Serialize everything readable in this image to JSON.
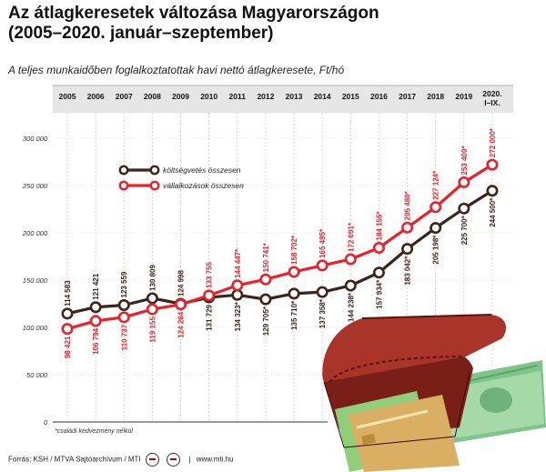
{
  "header": {
    "title_line1": "Az átlagkeresetek változása Magyarországon",
    "title_line2": "(2005–2020. január–szeptember)",
    "subtitle": "A teljes munkaidőben foglalkoztatottak havi nettó átlagkeresete, Ft/hó"
  },
  "footer": {
    "source": "Forrás: KSH / MTVA Sajtóarchívum / MTI",
    "url": "www.mti.hu"
  },
  "colors": {
    "red": "#e8212a",
    "brown": "#3d2418",
    "grid_line": "#cccccc",
    "header_band": "#e6e6e6"
  },
  "chart_data": {
    "type": "line",
    "categories": [
      "2005",
      "2006",
      "2007",
      "2008",
      "2009",
      "2010",
      "2011",
      "2012",
      "2013",
      "2014",
      "2015",
      "2016",
      "2017",
      "2018",
      "2019",
      "2020. I–IX."
    ],
    "ylim": [
      0,
      300000
    ],
    "yticks": [
      "0",
      "50 000",
      "100 000",
      "150 000",
      "200 000",
      "250 000",
      "300 000"
    ],
    "grid": true,
    "legend_position": "upper-left",
    "footnote": "*családi kedvezmény nélkül",
    "series": [
      {
        "name": "költségvetés összesen",
        "color": "#3d2418",
        "values": [
          114583,
          121421,
          123559,
          130809,
          124998,
          131729,
          134323,
          129705,
          135710,
          137358,
          144238,
          157934,
          183042,
          205198,
          225700,
          244500
        ],
        "labels": [
          "114 583",
          "121 421",
          "123 559",
          "130 809",
          "124 998",
          "131 729",
          "134 323*",
          "129 705*",
          "135 710*",
          "137 358*",
          "144 238*",
          "157 934*",
          "183 042*",
          "205 198*",
          "225 700*",
          "244 500*"
        ]
      },
      {
        "name": "vállalkozások összesen",
        "color": "#e8212a",
        "values": [
          98421,
          106794,
          110737,
          119155,
          124264,
          133755,
          144447,
          150741,
          158702,
          165495,
          172091,
          184155,
          205480,
          227124,
          253400,
          272000
        ],
        "labels": [
          "98 421",
          "106 794",
          "110 737",
          "119 155",
          "124 264",
          "133 755",
          "144 447*",
          "150 741*",
          "158 702*",
          "165 495*",
          "172 091*",
          "184 155*",
          "205 480*",
          "227 124*",
          "253 400*",
          "272 000*"
        ]
      }
    ]
  }
}
